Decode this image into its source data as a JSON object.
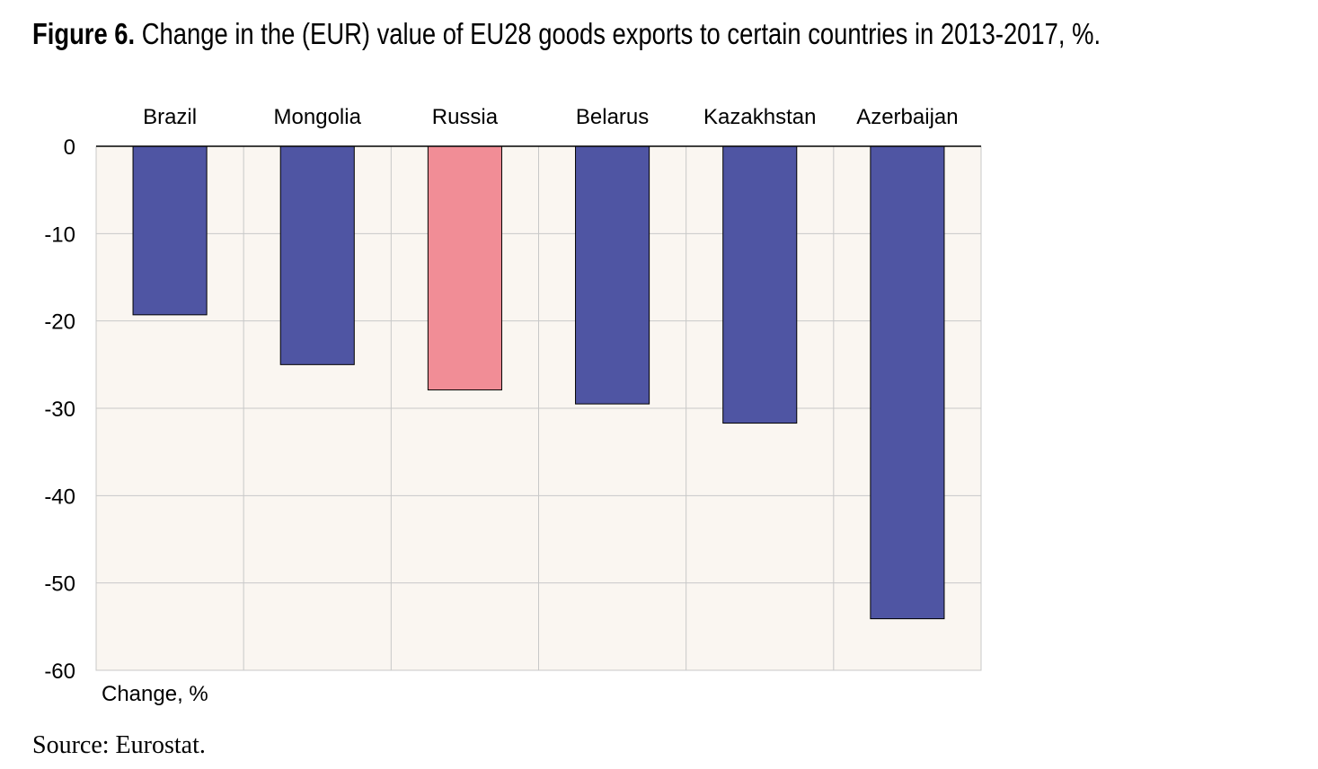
{
  "figure": {
    "label": "Figure 6.",
    "title": "Change in the (EUR) value of EU28 goods exports to certain countries in 2013-2017, %."
  },
  "source": "Source: Eurostat.",
  "chart_data": {
    "type": "bar",
    "orientation": "vertical",
    "categories": [
      "Brazil",
      "Mongolia",
      "Russia",
      "Belarus",
      "Kazakhstan",
      "Azerbaijan"
    ],
    "values": [
      -19.3,
      -25.0,
      -27.9,
      -29.5,
      -31.7,
      -54.1
    ],
    "bar_colors": [
      "#4f55a3",
      "#4f55a3",
      "#f18d96",
      "#4f55a3",
      "#4f55a3",
      "#4f55a3"
    ],
    "highlight": "Russia",
    "ylabel": "Change, %",
    "ylim": [
      -60,
      0
    ],
    "yticks": [
      0,
      -10,
      -20,
      -30,
      -40,
      -50,
      -60
    ],
    "category_labels_position": "top",
    "grid": true,
    "plot_background": "#faf6f1",
    "grid_color": "#c8c8c8"
  }
}
